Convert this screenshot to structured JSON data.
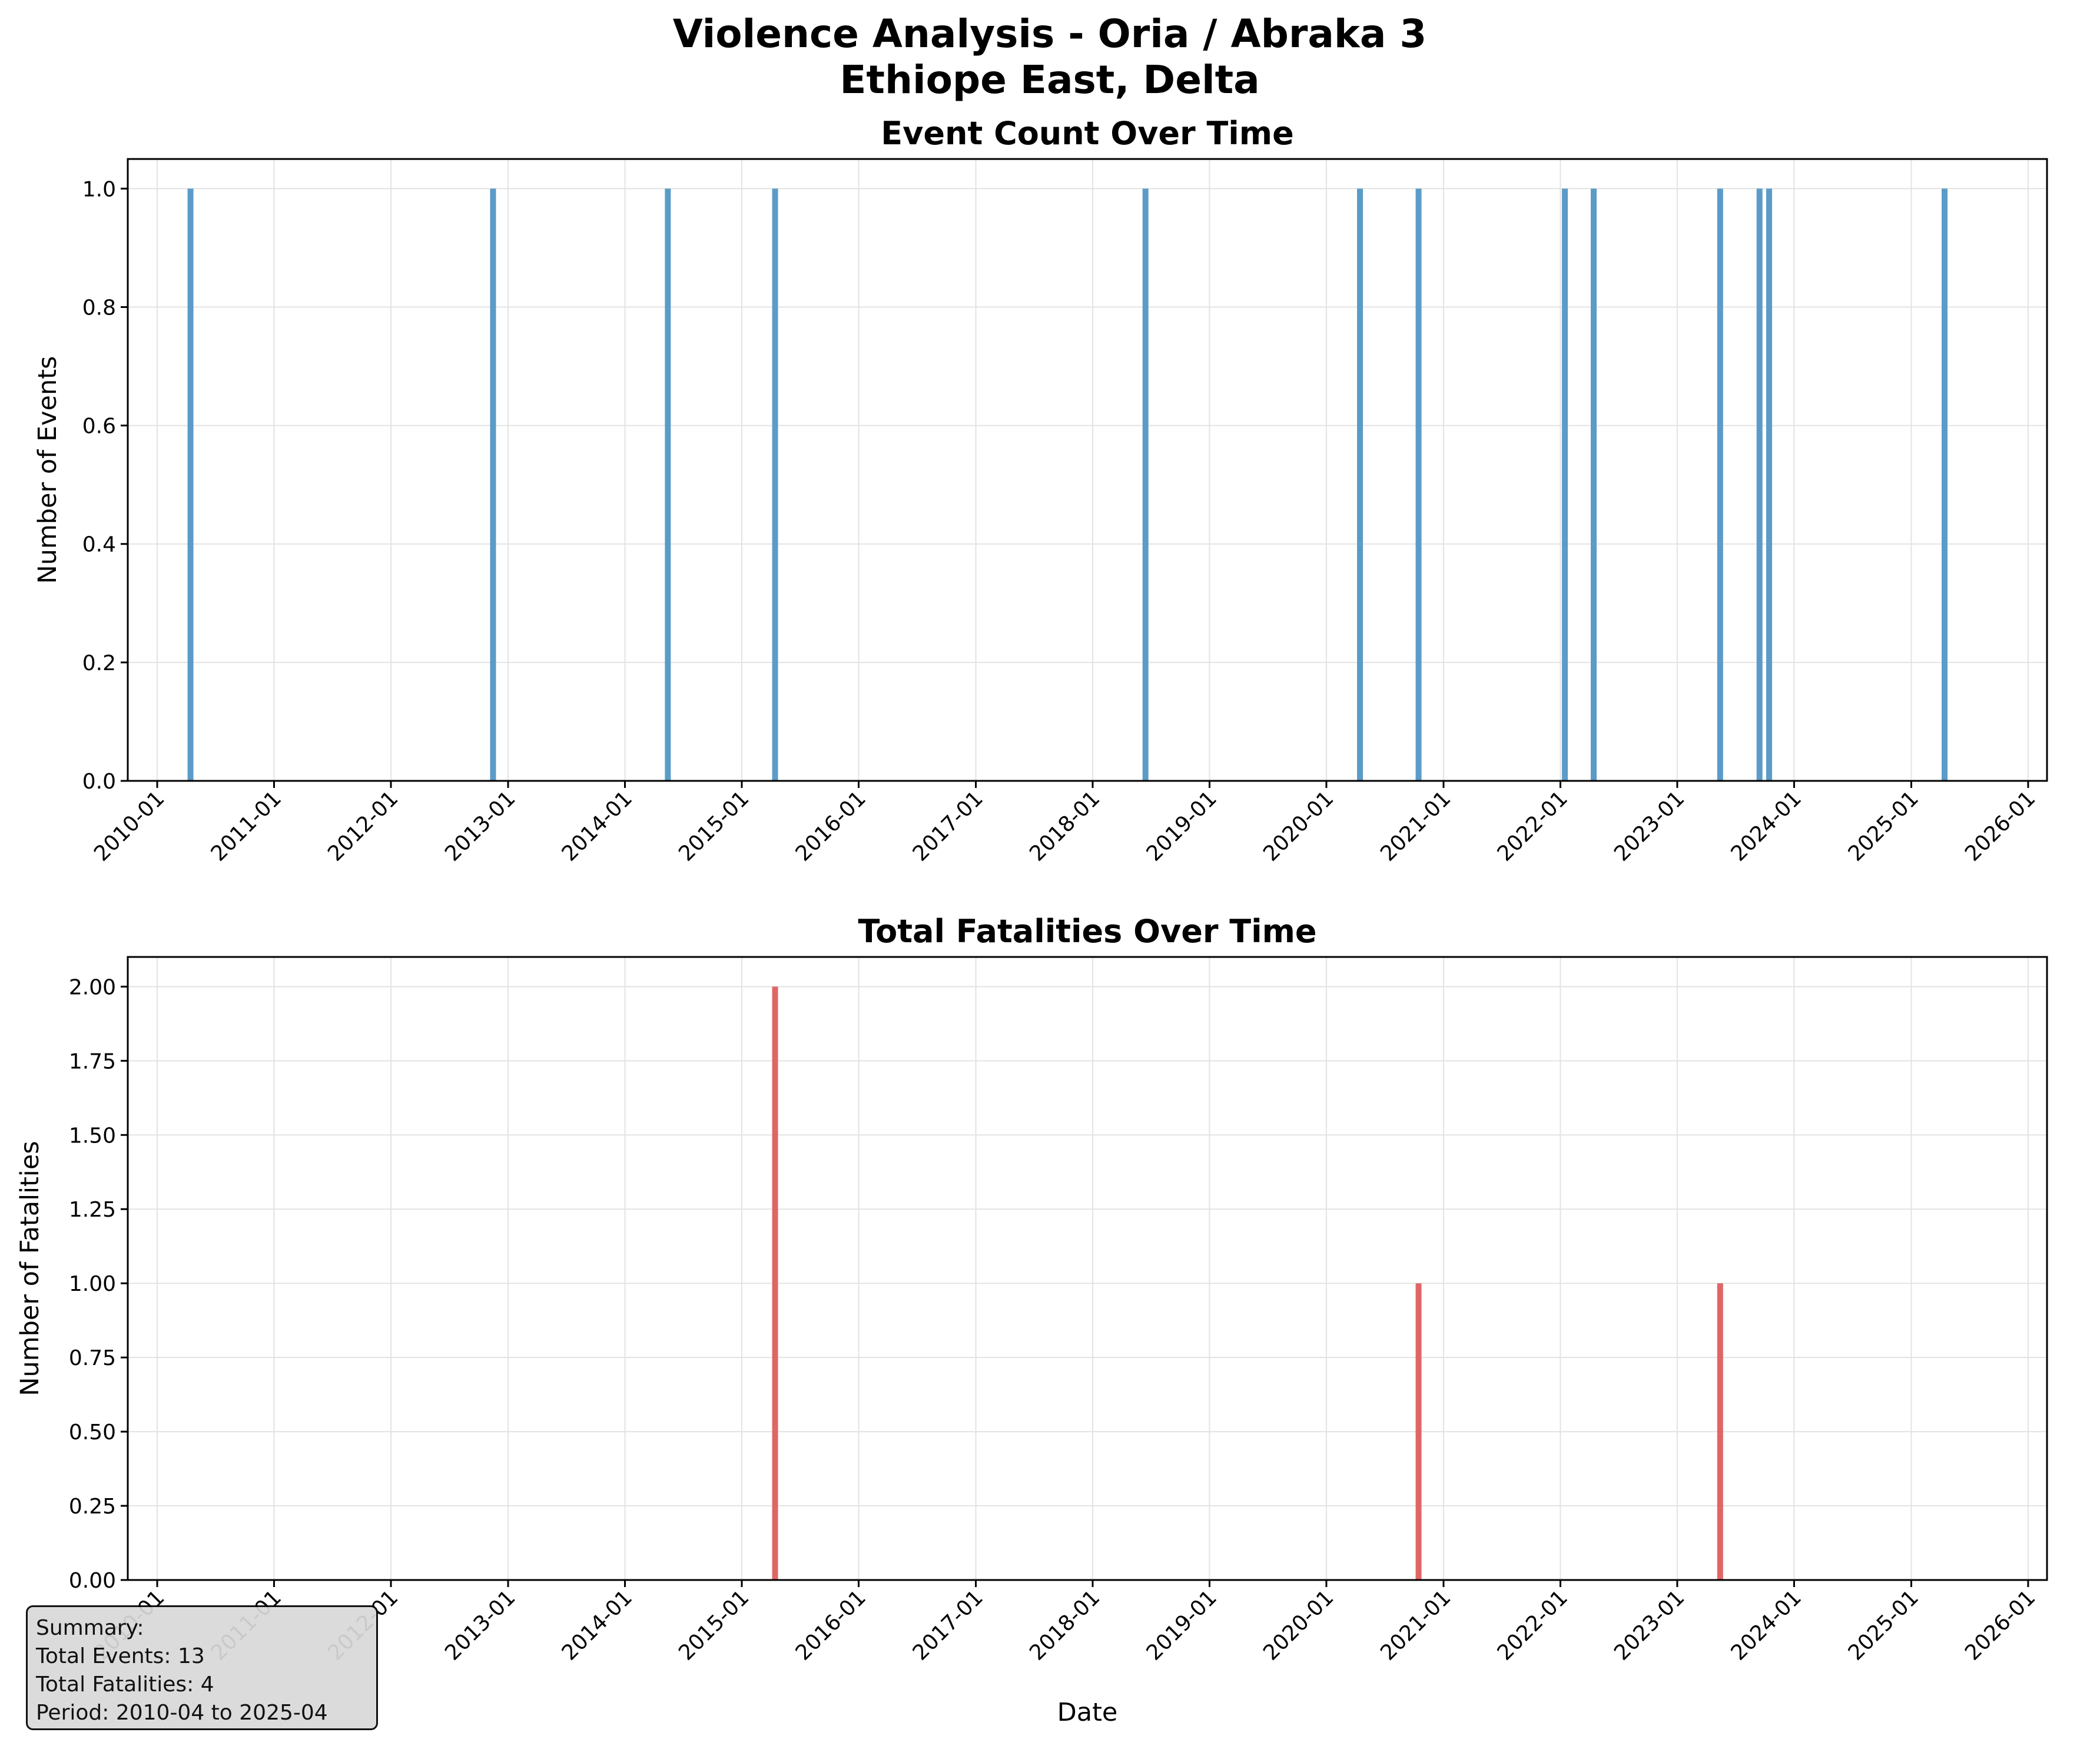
{
  "chart_data": [
    {
      "type": "bar",
      "suptitle": [
        "Violence Analysis - Oria / Abraka  3",
        "Ethiope East, Delta"
      ],
      "title": "Event Count Over Time",
      "xlabel": "",
      "ylabel": "Number of Events",
      "xlim": [
        "2009-10-01",
        "2026-03-01"
      ],
      "ylim": [
        0,
        1.05
      ],
      "yticks": [
        "0.0",
        "0.2",
        "0.4",
        "0.6",
        "0.8",
        "1.0"
      ],
      "xticks": [
        "2010-01",
        "2011-01",
        "2012-01",
        "2013-01",
        "2014-01",
        "2015-01",
        "2016-01",
        "2017-01",
        "2018-01",
        "2019-01",
        "2020-01",
        "2021-01",
        "2022-01",
        "2023-01",
        "2024-01",
        "2025-01",
        "2026-01"
      ],
      "grid": true,
      "color": "#5b9bc8",
      "points": [
        {
          "x": "2010-04",
          "y": 1
        },
        {
          "x": "2012-11",
          "y": 1
        },
        {
          "x": "2014-05",
          "y": 1
        },
        {
          "x": "2015-04",
          "y": 1
        },
        {
          "x": "2018-06",
          "y": 1
        },
        {
          "x": "2020-04",
          "y": 1
        },
        {
          "x": "2020-10",
          "y": 1
        },
        {
          "x": "2022-01",
          "y": 1
        },
        {
          "x": "2022-04",
          "y": 1
        },
        {
          "x": "2023-05",
          "y": 1
        },
        {
          "x": "2023-09",
          "y": 1
        },
        {
          "x": "2023-10",
          "y": 1
        },
        {
          "x": "2025-04",
          "y": 1
        }
      ]
    },
    {
      "type": "bar",
      "title": "Total Fatalities Over Time",
      "xlabel": "Date",
      "ylabel": "Number of Fatalities",
      "xlim": [
        "2009-10-01",
        "2026-03-01"
      ],
      "ylim": [
        0,
        2.1
      ],
      "yticks": [
        "0.00",
        "0.25",
        "0.50",
        "0.75",
        "1.00",
        "1.25",
        "1.50",
        "1.75",
        "2.00"
      ],
      "xticks": [
        "2010-01",
        "2011-01",
        "2012-01",
        "2013-01",
        "2014-01",
        "2015-01",
        "2016-01",
        "2017-01",
        "2018-01",
        "2019-01",
        "2020-01",
        "2021-01",
        "2022-01",
        "2023-01",
        "2024-01",
        "2025-01",
        "2026-01"
      ],
      "grid": true,
      "color": "#e06666",
      "points": [
        {
          "x": "2015-04",
          "y": 2
        },
        {
          "x": "2020-10",
          "y": 1
        },
        {
          "x": "2023-05",
          "y": 1
        }
      ]
    }
  ],
  "summary": {
    "heading": "Summary:",
    "total_events": "Total Events: 13",
    "total_fatalities": "Total Fatalities: 4",
    "period": "Period: 2010-04 to 2025-04"
  }
}
